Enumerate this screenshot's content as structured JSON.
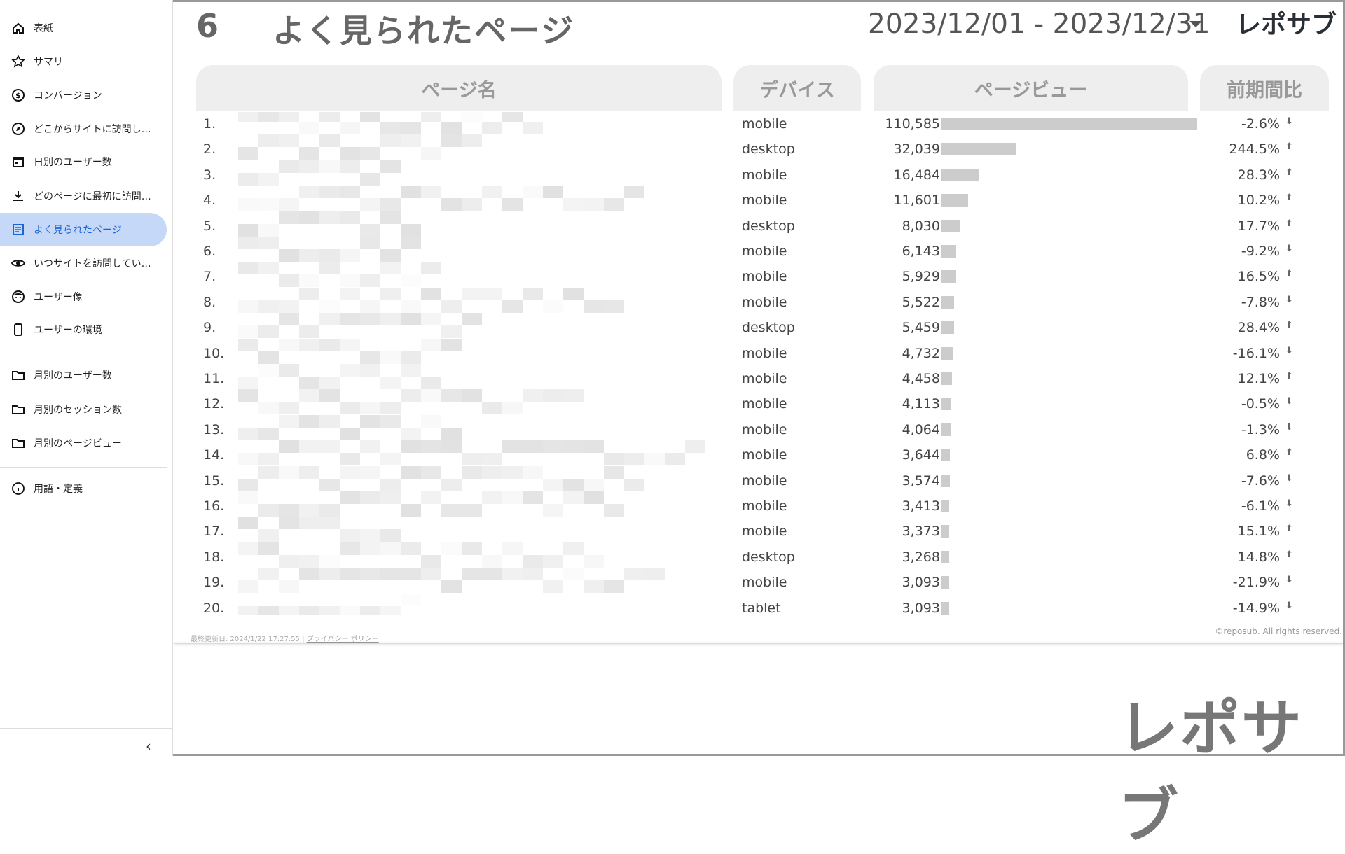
{
  "sidebar": {
    "items": [
      {
        "label": "表紙",
        "icon": "home-icon"
      },
      {
        "label": "サマリ",
        "icon": "star-icon"
      },
      {
        "label": "コンバージョン",
        "icon": "dollar-circle-icon"
      },
      {
        "label": "どこからサイトに訪問し…",
        "icon": "compass-icon"
      },
      {
        "label": "日別のユーザー数",
        "icon": "calendar-icon"
      },
      {
        "label": "どのページに最初に訪問…",
        "icon": "download-icon"
      },
      {
        "label": "よく見られたページ",
        "icon": "document-icon",
        "active": true
      },
      {
        "label": "いつサイトを訪問してい…",
        "icon": "eye-icon"
      },
      {
        "label": "ユーザー像",
        "icon": "face-icon"
      },
      {
        "label": "ユーザーの環境",
        "icon": "smartphone-icon"
      },
      {
        "label": "月別のユーザー数",
        "icon": "folder-icon"
      },
      {
        "label": "月別のセッション数",
        "icon": "folder-icon"
      },
      {
        "label": "月別のページビュー",
        "icon": "folder-icon"
      },
      {
        "label": "用語・定義",
        "icon": "info-icon"
      }
    ],
    "collapse": "‹"
  },
  "header": {
    "page_number": "6",
    "title": "よく見られたページ",
    "date_range": "2023/12/01 - 2023/12/31",
    "logo": "レポサブ"
  },
  "table": {
    "columns": [
      "ページ名",
      "デバイス",
      "ページビュー",
      "前期間比"
    ],
    "rows": [
      {
        "n": "1.",
        "device": "mobile",
        "pv": "110,585",
        "pv_value": 110585,
        "change": "-2.6%",
        "dir": "down"
      },
      {
        "n": "2.",
        "device": "desktop",
        "pv": "32,039",
        "pv_value": 32039,
        "change": "244.5%",
        "dir": "up"
      },
      {
        "n": "3.",
        "device": "mobile",
        "pv": "16,484",
        "pv_value": 16484,
        "change": "28.3%",
        "dir": "up"
      },
      {
        "n": "4.",
        "device": "mobile",
        "pv": "11,601",
        "pv_value": 11601,
        "change": "10.2%",
        "dir": "up"
      },
      {
        "n": "5.",
        "device": "desktop",
        "pv": "8,030",
        "pv_value": 8030,
        "change": "17.7%",
        "dir": "up"
      },
      {
        "n": "6.",
        "device": "mobile",
        "pv": "6,143",
        "pv_value": 6143,
        "change": "-9.2%",
        "dir": "down"
      },
      {
        "n": "7.",
        "device": "mobile",
        "pv": "5,929",
        "pv_value": 5929,
        "change": "16.5%",
        "dir": "up"
      },
      {
        "n": "8.",
        "device": "mobile",
        "pv": "5,522",
        "pv_value": 5522,
        "change": "-7.8%",
        "dir": "down"
      },
      {
        "n": "9.",
        "device": "desktop",
        "pv": "5,459",
        "pv_value": 5459,
        "change": "28.4%",
        "dir": "up"
      },
      {
        "n": "10.",
        "device": "mobile",
        "pv": "4,732",
        "pv_value": 4732,
        "change": "-16.1%",
        "dir": "down"
      },
      {
        "n": "11.",
        "device": "mobile",
        "pv": "4,458",
        "pv_value": 4458,
        "change": "12.1%",
        "dir": "up"
      },
      {
        "n": "12.",
        "device": "mobile",
        "pv": "4,113",
        "pv_value": 4113,
        "change": "-0.5%",
        "dir": "down"
      },
      {
        "n": "13.",
        "device": "mobile",
        "pv": "4,064",
        "pv_value": 4064,
        "change": "-1.3%",
        "dir": "down"
      },
      {
        "n": "14.",
        "device": "mobile",
        "pv": "3,644",
        "pv_value": 3644,
        "change": "6.8%",
        "dir": "up"
      },
      {
        "n": "15.",
        "device": "mobile",
        "pv": "3,574",
        "pv_value": 3574,
        "change": "-7.6%",
        "dir": "down"
      },
      {
        "n": "16.",
        "device": "mobile",
        "pv": "3,413",
        "pv_value": 3413,
        "change": "-6.1%",
        "dir": "down"
      },
      {
        "n": "17.",
        "device": "mobile",
        "pv": "3,373",
        "pv_value": 3373,
        "change": "15.1%",
        "dir": "up"
      },
      {
        "n": "18.",
        "device": "desktop",
        "pv": "3,268",
        "pv_value": 3268,
        "change": "14.8%",
        "dir": "up"
      },
      {
        "n": "19.",
        "device": "mobile",
        "pv": "3,093",
        "pv_value": 3093,
        "change": "-21.9%",
        "dir": "down"
      },
      {
        "n": "20.",
        "device": "tablet",
        "pv": "3,093",
        "pv_value": 3093,
        "change": "-14.9%",
        "dir": "down"
      }
    ]
  },
  "footer": {
    "updated": "最終更新日: 2024/1/22 17:27:55 | ",
    "privacy": "プライバシー ポリシー",
    "copyright": "©reposub. All rights reserved."
  },
  "brand_logo": "レポサブ",
  "colors": {
    "active_bg": "#c6d8f7",
    "active_text": "#1a66d6",
    "bar": "#cccccc",
    "header_bg": "#eeeeee"
  }
}
